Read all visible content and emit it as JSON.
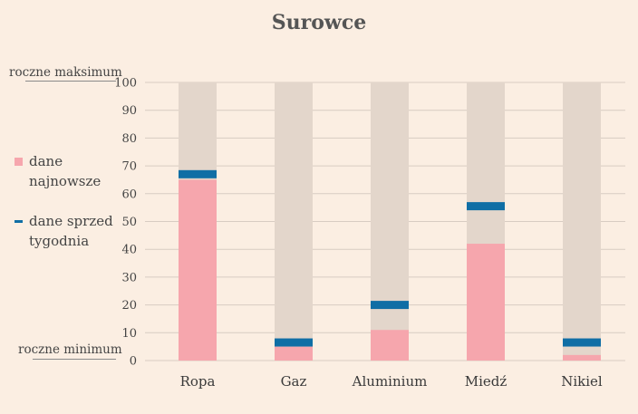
{
  "chart_data": {
    "type": "bar",
    "title": "Surowce",
    "categories": [
      "Ropa",
      "Gaz",
      "Aluminium",
      "Miedź",
      "Nikiel"
    ],
    "series": [
      {
        "name": "dane najnowsze",
        "values": [
          65,
          5,
          11,
          42,
          2
        ],
        "color": "#f6a6ad"
      },
      {
        "name": "dane sprzed tygodnia",
        "values": [
          67,
          6.5,
          20,
          55.5,
          6.5
        ],
        "color": "#0f6ea5"
      }
    ],
    "range_bar": {
      "min": 0,
      "max": 100,
      "color": "#e3d6cb"
    },
    "ylim": [
      0,
      100
    ],
    "yticks": [
      "0",
      "10",
      "20",
      "30",
      "40",
      "50",
      "60",
      "70",
      "80",
      "90",
      "100"
    ],
    "xlabel": "",
    "ylabel": "",
    "grid": true,
    "legend_position": "left"
  },
  "annotations": {
    "max_label": "roczne maksimum",
    "min_label": "roczne minimum"
  },
  "colors": {
    "background": "#fbeee2",
    "grid": "#d8ccc2"
  }
}
